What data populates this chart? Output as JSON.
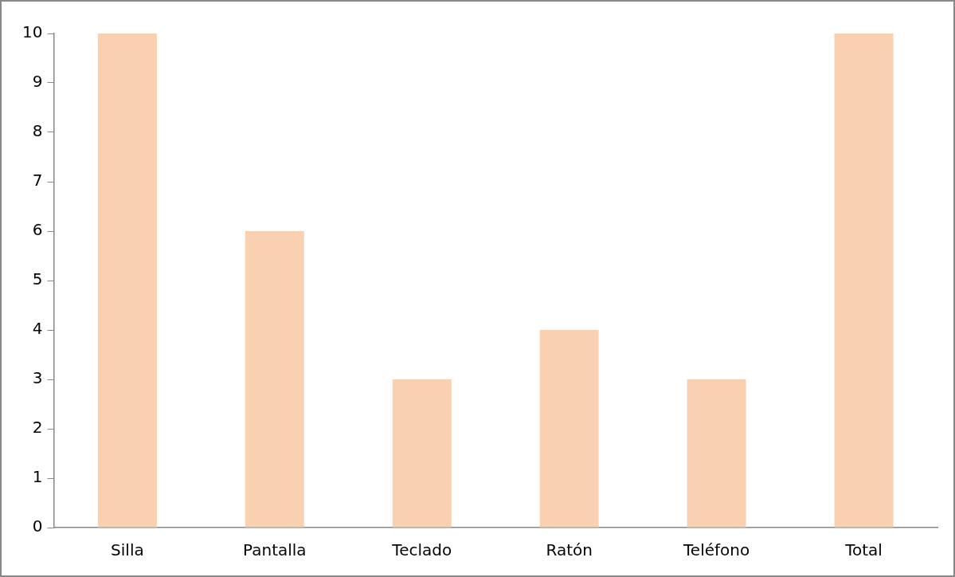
{
  "chart_data": {
    "type": "bar",
    "categories": [
      "Silla",
      "Pantalla",
      "Teclado",
      "Ratón",
      "Teléfono",
      "Total"
    ],
    "values": [
      10,
      6,
      3,
      4,
      3,
      10
    ],
    "color": "#f9d1b0",
    "ylim": [
      0,
      10
    ],
    "yticks": [
      0,
      1,
      2,
      3,
      4,
      5,
      6,
      7,
      8,
      9,
      10
    ],
    "grid": false,
    "legend": false
  }
}
